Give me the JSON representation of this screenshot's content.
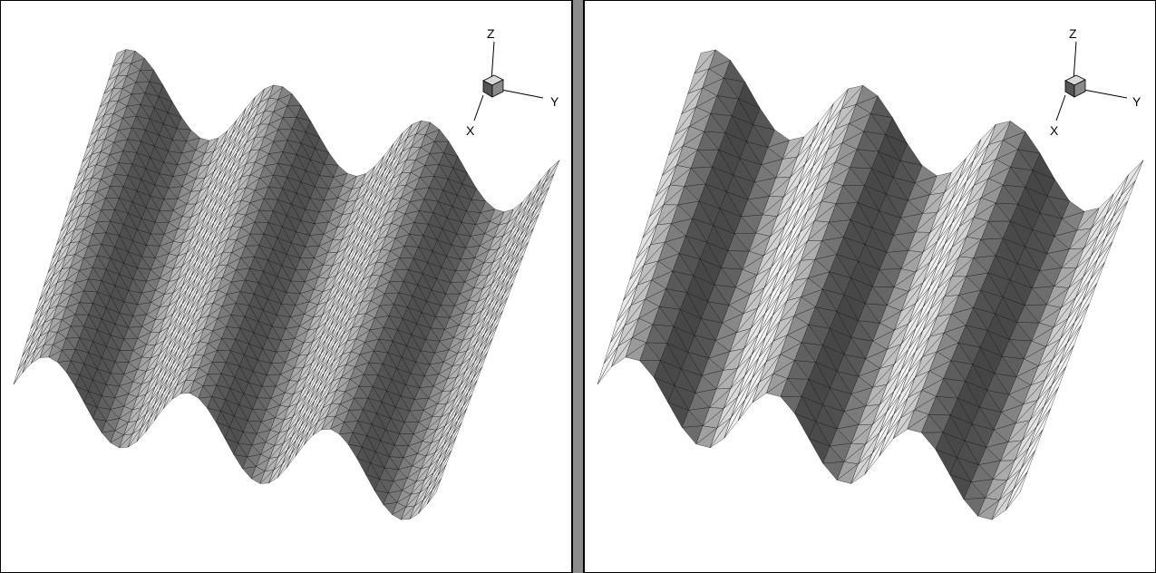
{
  "viewports": [
    {
      "id": "left",
      "mesh": "fine",
      "triad": {
        "z_label": "Z",
        "y_label": "Y",
        "x_label": "X"
      }
    },
    {
      "id": "right",
      "mesh": "coarse",
      "triad": {
        "z_label": "Z",
        "y_label": "Y",
        "x_label": "X"
      }
    }
  ],
  "colors": {
    "background": "#ffffff",
    "separator": "#8c8c8c",
    "surface_dark": "#4a4a4a",
    "surface_light": "#e6e6e6",
    "mesh_line": "#000000"
  }
}
